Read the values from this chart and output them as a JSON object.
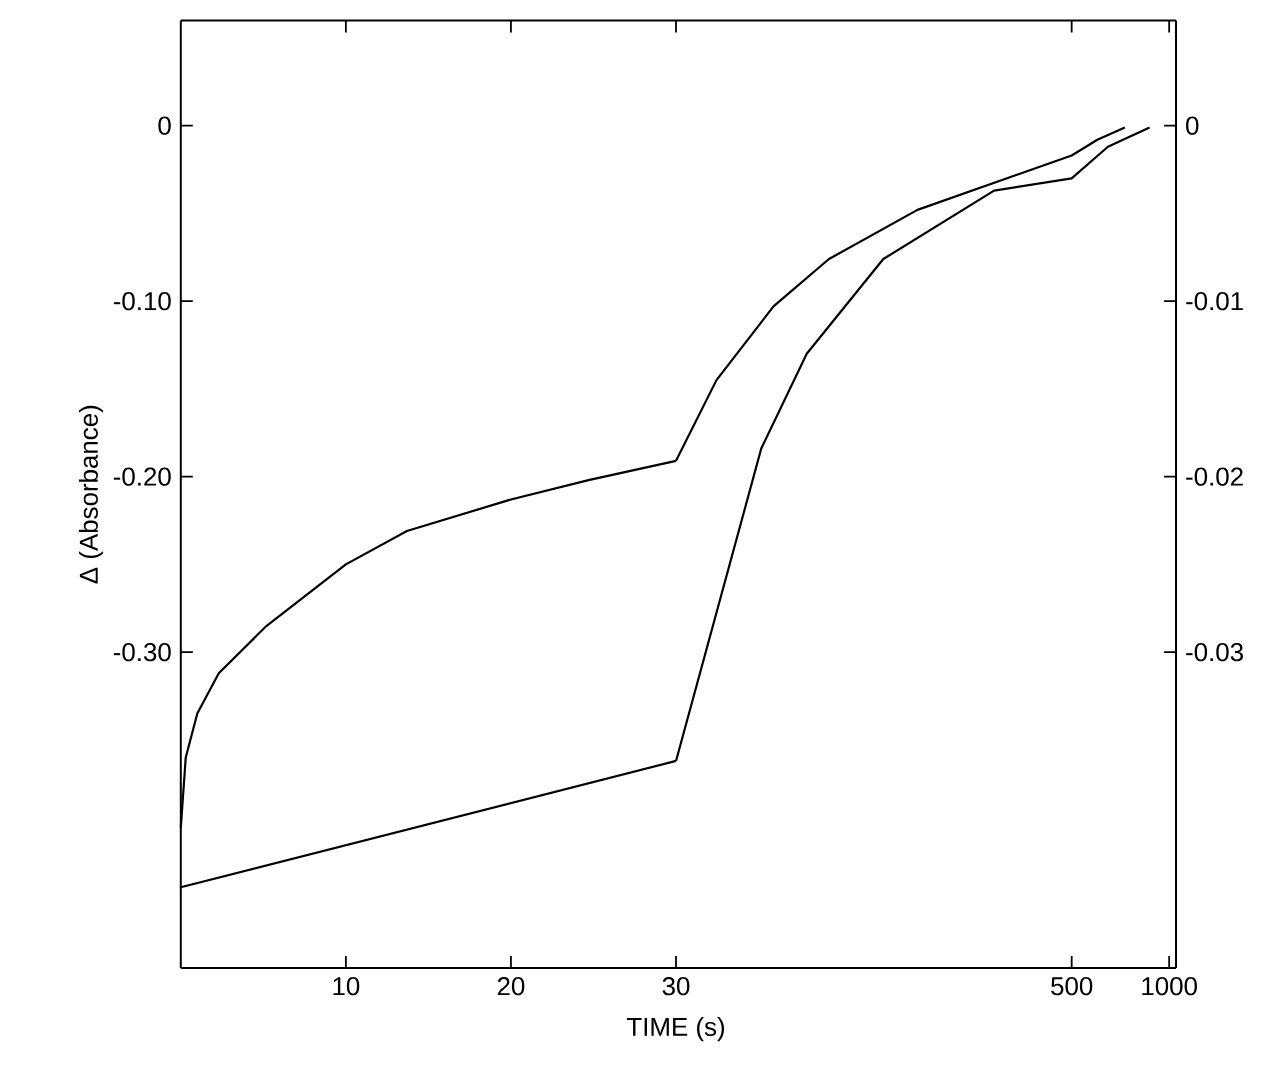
{
  "chart_data": [
    {
      "type": "line",
      "xlabel": "TIME (s)",
      "ylabel": "Δ (Absorbance)",
      "xlim": [
        0,
        30
      ],
      "xticks": [
        10,
        20,
        30
      ],
      "ylim": [
        -0.48,
        0.06
      ],
      "yticks": [
        0,
        {
          "value": -0.1,
          "label": "-0.10"
        },
        {
          "value": -0.2,
          "label": "-0.20"
        },
        {
          "value": -0.3,
          "label": "-0.30"
        }
      ],
      "y2lim": [
        -0.048,
        0.006
      ],
      "grid": false,
      "marker": "none",
      "line_style": "solid",
      "series": [
        {
          "color": "#000000",
          "x": [
            0,
            0.3,
            1,
            2.3,
            5.2,
            10,
            13.7,
            20,
            24.7,
            30
          ],
          "values": [
            -0.4,
            -0.36,
            -0.335,
            -0.312,
            -0.285,
            -0.25,
            -0.231,
            -0.213,
            -0.202,
            -0.191
          ]
        },
        {
          "color": "#000000",
          "axis": "y2",
          "x": [
            0,
            30
          ],
          "values": [
            -0.0434,
            -0.0362
          ]
        }
      ]
    },
    {
      "type": "line",
      "log": "x",
      "xlim": [
        30,
        1050
      ],
      "xticks": [
        500,
        1000
      ],
      "ylim": [
        -0.48,
        0.06
      ],
      "y2lim": [
        -0.048,
        0.006
      ],
      "y2ticks": [
        0,
        -0.01,
        -0.02,
        -0.03
      ],
      "grid": false,
      "marker": "none",
      "line_style": "solid",
      "series": [
        {
          "color": "#000000",
          "x": [
            30,
            40,
            60,
            89,
            167,
            500,
            600,
            730
          ],
          "values": [
            -0.191,
            -0.145,
            -0.103,
            -0.076,
            -0.048,
            -0.017,
            -0.008,
            -0.001
          ]
        },
        {
          "color": "#000000",
          "axis": "y2",
          "x": [
            30,
            55,
            76,
            131,
            288,
            500,
            647,
            870
          ],
          "values": [
            -0.0362,
            -0.0184,
            -0.013,
            -0.0076,
            -0.0037,
            -0.003,
            -0.0012,
            -0.0001
          ]
        }
      ]
    }
  ]
}
